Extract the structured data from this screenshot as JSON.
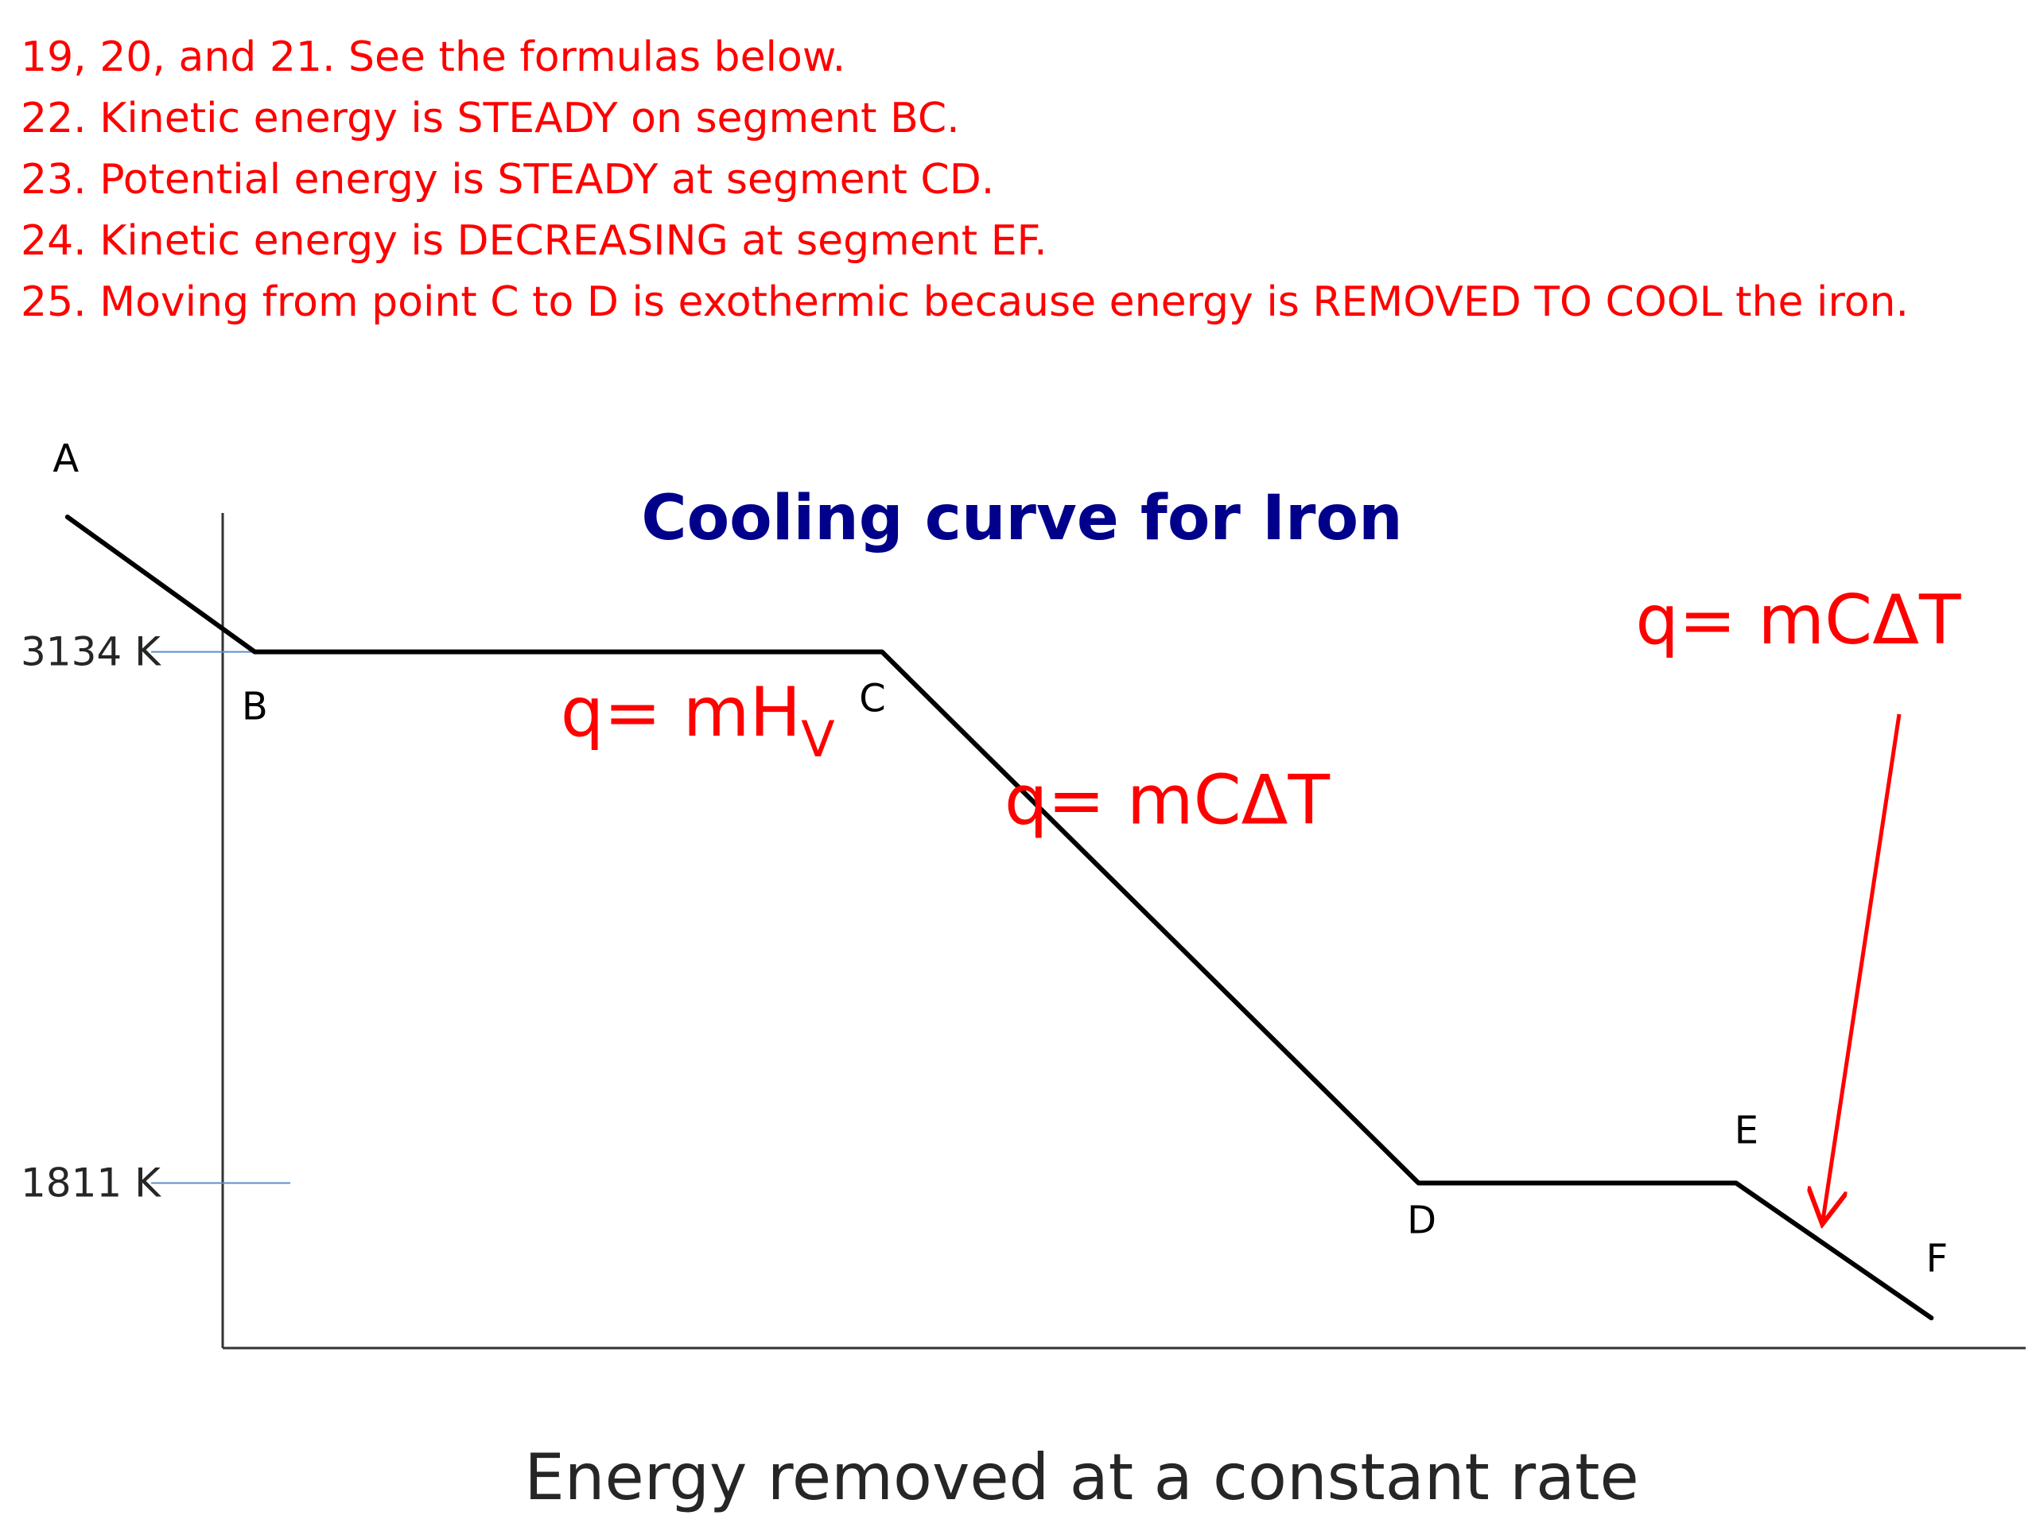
{
  "notes": [
    "19, 20, and 21.  See the formulas below.",
    "22.  Kinetic energy is STEADY on segment BC.",
    "23.  Potential energy is STEADY at segment CD.",
    "24.  Kinetic energy is DECREASING at segment EF.",
    "25.  Moving from point C to D is exothermic because energy is REMOVED TO COOL the iron."
  ],
  "colors": {
    "notes": "#ff0000",
    "title": "#00008b",
    "curve": "#000000",
    "axis": "#333333",
    "tick": "#5b8fc9",
    "formula": "#ff0000"
  },
  "chart_data": {
    "type": "line",
    "title": "Cooling curve for Iron",
    "xlabel": "Energy removed at a constant rate",
    "ylabel": "",
    "y_ticks": [
      {
        "value": 3134,
        "label": "3134 K"
      },
      {
        "value": 1811,
        "label": "1811 K"
      }
    ],
    "ylim": [
      1400,
      3480
    ],
    "xlim": [
      0,
      100
    ],
    "grid": false,
    "legend": "none",
    "series": [
      {
        "points": [
          {
            "label": "A",
            "x": 1,
            "y": 3470
          },
          {
            "label": "B",
            "x": 10.5,
            "y": 3134
          },
          {
            "label": "C",
            "x": 42.3,
            "y": 3134
          },
          {
            "label": "D",
            "x": 69.5,
            "y": 1811
          },
          {
            "label": "E",
            "x": 85.6,
            "y": 1811
          },
          {
            "label": "F",
            "x": 95.5,
            "y": 1475
          }
        ]
      }
    ],
    "annotations": [
      {
        "id": "bc",
        "text": "q= mH",
        "subscript": "V",
        "x": 26,
        "y": 2925
      },
      {
        "id": "cd",
        "text": "q= mCΔT",
        "x": 65,
        "y": 2706
      },
      {
        "id": "ef",
        "text": "q= mCΔT",
        "x": 97,
        "y": 3155,
        "arrow_to": {
          "x": 90,
          "y": 1718
        }
      }
    ]
  }
}
